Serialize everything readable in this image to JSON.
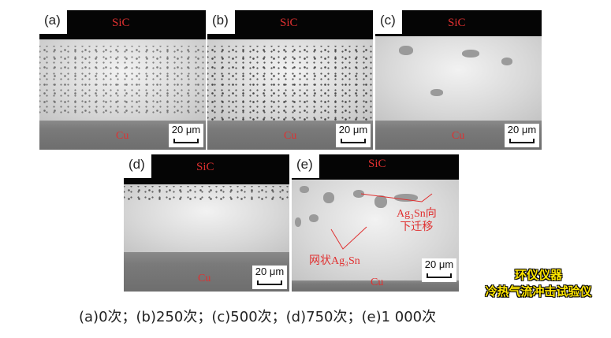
{
  "panels": [
    {
      "label": "(a)",
      "top_layer": "SiC",
      "bottom_layer": "Cu",
      "scale": "20 μm"
    },
    {
      "label": "(b)",
      "top_layer": "SiC",
      "bottom_layer": "Cu",
      "scale": "20 μm"
    },
    {
      "label": "(c)",
      "top_layer": "SiC",
      "bottom_layer": "Cu",
      "scale": "20 μm"
    },
    {
      "label": "(d)",
      "top_layer": "SiC",
      "bottom_layer": "Cu",
      "scale": "20 μm"
    },
    {
      "label": "(e)",
      "top_layer": "SiC",
      "bottom_layer": "Cu",
      "scale": "20 μm",
      "annotations": {
        "migration_line1": "Ag₃Sn向",
        "migration_line2": "下迁移",
        "network": "网状Ag₃Sn"
      }
    }
  ],
  "caption": "(a)0次；(b)250次；(c)500次；(d)750次；(e)1 000次",
  "watermark": {
    "line1": "环仪仪器",
    "line2": "冷热气流冲击试验仪"
  }
}
